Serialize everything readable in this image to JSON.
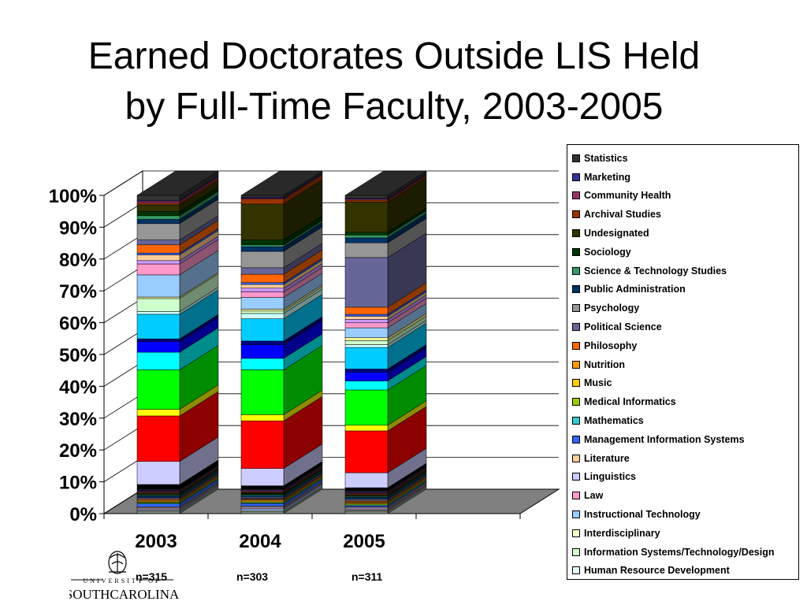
{
  "title_line1": "Earned Doctorates Outside LIS Held",
  "title_line2": "by Full-Time Faculty, 2003-2005",
  "n_labels": [
    "n=315",
    "n=303",
    "n=311"
  ],
  "logo": {
    "top": "UNIVERSITY OF",
    "bottom": "SOUTHCAROLINA"
  },
  "chart_data": {
    "type": "bar",
    "stacked": "percent",
    "categories": [
      "2003",
      "2004",
      "2005"
    ],
    "y_ticks": [
      "0%",
      "10%",
      "20%",
      "30%",
      "40%",
      "50%",
      "60%",
      "70%",
      "80%",
      "90%",
      "100%"
    ],
    "ylim": [
      0,
      100
    ],
    "legend_position": "right",
    "series": [
      {
        "name": "Human Resource Development",
        "color": "#e3f7fd",
        "values": [
          0.3,
          0.3,
          0.3
        ]
      },
      {
        "name": "Information Systems/Technology/Design",
        "color": "#cfffcf",
        "values": [
          0.3,
          0.3,
          0.3
        ]
      },
      {
        "name": "Interdisciplinary",
        "color": "#ffffcc",
        "values": [
          0.3,
          0.3,
          0.3
        ]
      },
      {
        "name": "Instructional Technology",
        "color": "#99ccff",
        "values": [
          0.4,
          0.6,
          0.3
        ]
      },
      {
        "name": "Law",
        "color": "#ff99cc",
        "values": [
          0.3,
          0.3,
          0.3
        ]
      },
      {
        "name": "Linguistics",
        "color": "#ccccff",
        "values": [
          0.3,
          0.3,
          0.3
        ]
      },
      {
        "name": "Literature",
        "color": "#ffcc99",
        "values": [
          0.3,
          0.3,
          0.3
        ]
      },
      {
        "name": "Management Information Systems",
        "color": "#3366ff",
        "values": [
          1.0,
          0.8,
          0.4
        ]
      },
      {
        "name": "Mathematics",
        "color": "#33cccc",
        "values": [
          0.3,
          0.3,
          0.3
        ]
      },
      {
        "name": "Medical Informatics",
        "color": "#99cc00",
        "values": [
          0.3,
          0.3,
          0.3
        ]
      },
      {
        "name": "Music",
        "color": "#ffcc00",
        "values": [
          0.3,
          0.3,
          0.3
        ]
      },
      {
        "name": "Nutrition",
        "color": "#ff9900",
        "values": [
          0.3,
          0.3,
          0.3
        ]
      },
      {
        "name": "Philosophy",
        "color": "#ff6600",
        "values": [
          0.3,
          0.3,
          0.3
        ]
      },
      {
        "name": "Political Science",
        "color": "#666699",
        "values": [
          0.3,
          0.3,
          0.3
        ]
      },
      {
        "name": "Psychology",
        "color": "#969696",
        "values": [
          0.3,
          0.3,
          0.3
        ]
      },
      {
        "name": "Public Administration",
        "color": "#003366",
        "values": [
          0.6,
          0.6,
          0.6
        ]
      },
      {
        "name": "Science & Technology Studies",
        "color": "#339966",
        "values": [
          0.3,
          0.3,
          0.3
        ]
      },
      {
        "name": "Sociology",
        "color": "#003300",
        "values": [
          0.3,
          0.3,
          0.3
        ]
      },
      {
        "name": "Undesignated",
        "color": "#333300",
        "values": [
          0.3,
          0.3,
          0.3
        ]
      },
      {
        "name": "Archival Studies",
        "color": "#993300",
        "values": [
          0.3,
          0.3,
          0.3
        ]
      },
      {
        "name": "Community Health",
        "color": "#993366",
        "values": [
          0.3,
          0.3,
          0.3
        ]
      },
      {
        "name": "Marketing",
        "color": "#333399",
        "values": [
          0.3,
          0.3,
          0.3
        ]
      },
      {
        "name": "Statistics",
        "color": "#333333",
        "values": [
          0.3,
          0.3,
          0.3
        ]
      },
      {
        "name": "",
        "color": "#000000",
        "values": [
          1.6,
          1.0,
          1.0
        ]
      },
      {
        "name": "",
        "color": "#ccccff",
        "values": [
          7.6,
          5.6,
          4.8
        ]
      },
      {
        "name": "",
        "color": "#ff0000",
        "values": [
          15.0,
          15.4,
          13.4
        ]
      },
      {
        "name": "",
        "color": "#ffff00",
        "values": [
          2.2,
          2.0,
          1.8
        ]
      },
      {
        "name": "",
        "color": "#00ff00",
        "values": [
          13.0,
          14.5,
          11.3
        ]
      },
      {
        "name": "",
        "color": "#00ffff",
        "values": [
          5.8,
          3.7,
          2.9
        ]
      },
      {
        "name": "",
        "color": "#0000ff",
        "values": [
          3.5,
          4.4,
          2.8
        ]
      },
      {
        "name": "",
        "color": "#000080",
        "values": [
          0.9,
          1.2,
          1.0
        ]
      },
      {
        "name": "",
        "color": "#00ccff",
        "values": [
          8.1,
          7.2,
          6.9
        ]
      },
      {
        "name": "",
        "color": "#ccffff",
        "values": [
          0.9,
          1.7,
          0.9
        ]
      },
      {
        "name": "",
        "color": "#ccffcc",
        "values": [
          4.3,
          0.8,
          1.3
        ]
      },
      {
        "name": "",
        "color": "#ffff99",
        "values": [
          0.5,
          0.6,
          0.9
        ]
      },
      {
        "name": "",
        "color": "#99ccff",
        "values": [
          7.3,
          3.8,
          3.2
        ]
      },
      {
        "name": "",
        "color": "#ff99cc",
        "values": [
          3.6,
          1.8,
          1.6
        ]
      },
      {
        "name": "",
        "color": "#cc99ff",
        "values": [
          1.1,
          1.2,
          1.1
        ]
      },
      {
        "name": "",
        "color": "#ffcc99",
        "values": [
          1.9,
          1.2,
          1.0
        ]
      },
      {
        "name": "",
        "color": "#3366ff",
        "values": [
          0.6,
          0.6,
          0.6
        ]
      },
      {
        "name": "",
        "color": "#ff6600",
        "values": [
          2.7,
          2.7,
          2.3
        ]
      },
      {
        "name": "",
        "color": "#666699",
        "values": [
          1.6,
          2.1,
          15.9
        ]
      },
      {
        "name": "",
        "color": "#969696",
        "values": [
          5.4,
          5.3,
          4.7
        ]
      },
      {
        "name": "",
        "color": "#003366",
        "values": [
          1.4,
          1.5,
          1.6
        ]
      },
      {
        "name": "",
        "color": "#339966",
        "values": [
          1.2,
          0.6,
          0.9
        ]
      },
      {
        "name": "",
        "color": "#003300",
        "values": [
          1.4,
          1.6,
          0.9
        ]
      },
      {
        "name": "",
        "color": "#333300",
        "values": [
          2.2,
          11.6,
          9.7
        ]
      },
      {
        "name": "",
        "color": "#993300",
        "values": [
          0.6,
          1.6,
          0.6
        ]
      },
      {
        "name": "",
        "color": "#993366",
        "values": [
          0.6,
          0.3,
          0.3
        ]
      },
      {
        "name": "",
        "color": "#333399",
        "values": [
          0.3,
          0.3,
          0.3
        ]
      },
      {
        "name": "",
        "color": "#333333",
        "values": [
          1.6,
          0.6,
          0.9
        ]
      }
    ],
    "legend": [
      {
        "label": "Statistics",
        "color": "#333333"
      },
      {
        "label": "Marketing",
        "color": "#333399"
      },
      {
        "label": "Community Health",
        "color": "#993366"
      },
      {
        "label": "Archival Studies",
        "color": "#993300"
      },
      {
        "label": "Undesignated",
        "color": "#333300"
      },
      {
        "label": "Sociology",
        "color": "#003300"
      },
      {
        "label": "Science & Technology Studies",
        "color": "#339966"
      },
      {
        "label": "Public Administration",
        "color": "#003366"
      },
      {
        "label": "Psychology",
        "color": "#969696"
      },
      {
        "label": "Political Science",
        "color": "#666699"
      },
      {
        "label": "Philosophy",
        "color": "#ff6600"
      },
      {
        "label": "Nutrition",
        "color": "#ff9900"
      },
      {
        "label": "Music",
        "color": "#ffcc00"
      },
      {
        "label": "Medical Informatics",
        "color": "#99cc00"
      },
      {
        "label": "Mathematics",
        "color": "#33cccc"
      },
      {
        "label": "Management Information Systems",
        "color": "#3366ff"
      },
      {
        "label": "Literature",
        "color": "#ffcc99"
      },
      {
        "label": "Linguistics",
        "color": "#ccccff"
      },
      {
        "label": "Law",
        "color": "#ff99cc"
      },
      {
        "label": "Instructional Technology",
        "color": "#99ccff"
      },
      {
        "label": "Interdisciplinary",
        "color": "#ffffcc"
      },
      {
        "label": "Information Systems/Technology/Design",
        "color": "#cfffcf"
      },
      {
        "label": "Human Resource Development",
        "color": "#e3f7fd"
      }
    ]
  }
}
